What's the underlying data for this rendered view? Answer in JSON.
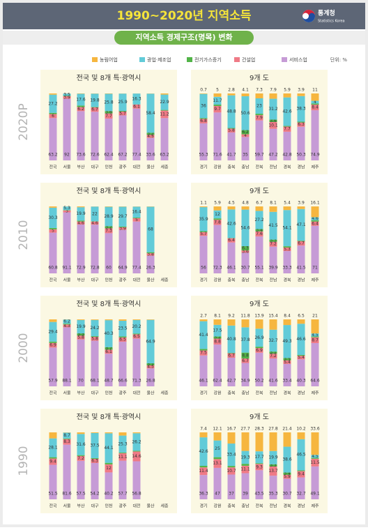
{
  "header": {
    "title": "1990~2020년 지역소득",
    "logo_text": "통계청",
    "logo_sub": "Statistics Korea"
  },
  "subtitle": "지역소득 경제구조(명목) 변화",
  "unit": "단위: %",
  "legend": [
    {
      "name": "농림어업",
      "color": "#f6b63f"
    },
    {
      "name": "광업·제조업",
      "color": "#62cbd8"
    },
    {
      "name": "전기가스증기",
      "color": "#52b448"
    },
    {
      "name": "건설업",
      "color": "#ef7a86"
    },
    {
      "name": "서비스업",
      "color": "#c69bd6"
    }
  ],
  "chart_data": [
    {
      "type": "bar",
      "stacked": true,
      "year": "2020P",
      "title": "전국 및 8개 특·광역시",
      "top_labels": false,
      "ylim": [
        0,
        100
      ],
      "categories": [
        "전국",
        "서울",
        "부산",
        "대구",
        "인천",
        "광주",
        "대전",
        "울산",
        "세종"
      ],
      "series": [
        {
          "values": [
            1.8,
            0.1,
            0.5,
            0.3,
            0.5,
            0.2,
            0.1,
            0.3,
            1.7
          ]
        },
        {
          "values": [
            27.2,
            3.5,
            17.6,
            19.8,
            25.8,
            25.9,
            16.3,
            58.4,
            22.9
          ]
        },
        {
          "values": [
            1.8,
            0.5,
            2.1,
            0.6,
            3.6,
            1.0,
            0.1,
            3.2,
            1.0
          ]
        },
        {
          "values": [
            6.0,
            3.9,
            6.2,
            6.7,
            7.7,
            5.7,
            6.1,
            4.5,
            11.2
          ]
        },
        {
          "values": [
            63.2,
            92.0,
            73.6,
            72.6,
            62.4,
            67.2,
            77.4,
            33.6,
            63.2
          ]
        }
      ]
    },
    {
      "type": "bar",
      "stacked": true,
      "title": "9개 도",
      "top_labels": true,
      "ylim": [
        0,
        100
      ],
      "categories": [
        "경기",
        "강원",
        "충북",
        "충남",
        "전북",
        "전남",
        "경북",
        "경남",
        "제주"
      ],
      "series": [
        {
          "values": [
            0.7,
            5.0,
            2.8,
            4.1,
            7.3,
            7.9,
            5.9,
            3.9,
            11.0
          ]
        },
        {
          "values": [
            36.0,
            11.7,
            48.8,
            50.6,
            23.0,
            31.2,
            42.6,
            38.3,
            4.0
          ]
        },
        {
          "values": [
            1.2,
            2.0,
            0.9,
            6.2,
            2.1,
            3.6,
            1.0,
            1.2,
            1.7
          ]
        },
        {
          "values": [
            6.8,
            9.7,
            5.8,
            4.0,
            7.9,
            10.1,
            7.7,
            6.3,
            8.4
          ]
        },
        {
          "values": [
            55.3,
            71.6,
            41.7,
            35.0,
            59.7,
            47.2,
            42.8,
            50.3,
            74.9
          ]
        }
      ]
    },
    {
      "type": "bar",
      "stacked": true,
      "year": "2010",
      "title": "전국 및 8개 특·광역시",
      "top_labels": false,
      "ylim": [
        0,
        100
      ],
      "categories": [
        "전국",
        "서울",
        "부산",
        "대구",
        "인천",
        "광주",
        "대전",
        "울산",
        "세종"
      ],
      "series": [
        {
          "values": [
            1.9,
            0.1,
            1.2,
            0.2,
            0.6,
            0.4,
            0.3,
            0.4,
            null
          ]
        },
        {
          "values": [
            30.3,
            5.3,
            19.9,
            22.0,
            28.9,
            29.7,
            16.4,
            68.0,
            null
          ]
        },
        {
          "values": [
            2.0,
            0.5,
            1.4,
            0.4,
            3.2,
            1.1,
            0.9,
            1.5,
            null
          ]
        },
        {
          "values": [
            5.0,
            3.0,
            4.6,
            4.6,
            7.3,
            3.9,
            5.0,
            3.8,
            null
          ]
        },
        {
          "values": [
            60.8,
            91.1,
            72.9,
            72.8,
            60.0,
            64.9,
            77.4,
            26.3,
            null
          ]
        }
      ]
    },
    {
      "type": "bar",
      "stacked": true,
      "title": "9개 도",
      "top_labels": true,
      "ylim": [
        0,
        100
      ],
      "categories": [
        "경기",
        "강원",
        "충북",
        "충남",
        "전북",
        "전남",
        "경북",
        "경남",
        "제주"
      ],
      "series": [
        {
          "values": [
            1.1,
            5.9,
            4.5,
            4.8,
            6.7,
            8.1,
            5.4,
            3.9,
            16.1
          ]
        },
        {
          "values": [
            35.9,
            12.0,
            42.6,
            54.6,
            27.2,
            41.5,
            54.1,
            47.1,
            4.6
          ]
        },
        {
          "values": [
            1.3,
            2.0,
            0.4,
            6.3,
            3.4,
            3.3,
            1.9,
            0.8,
            1.9
          ]
        },
        {
          "values": [
            5.7,
            7.8,
            6.4,
            3.6,
            7.6,
            7.2,
            5.3,
            6.7,
            6.4
          ]
        },
        {
          "values": [
            56.0,
            72.3,
            46.1,
            30.7,
            55.1,
            39.9,
            33.3,
            41.5,
            71.0
          ]
        }
      ]
    },
    {
      "type": "bar",
      "stacked": true,
      "year": "2000",
      "title": "전국 및 8개 특·광역시",
      "top_labels": false,
      "ylim": [
        0,
        100
      ],
      "categories": [
        "전국",
        "서울",
        "부산",
        "대구",
        "인천",
        "광주",
        "대전",
        "울산",
        "세종"
      ],
      "series": [
        {
          "values": [
            3.8,
            0.2,
            1.0,
            0.9,
            1.2,
            2.0,
            1.0,
            0.7,
            null
          ]
        },
        {
          "values": [
            29.4,
            6.2,
            19.9,
            24.2,
            40.3,
            23.5,
            20.2,
            64.9,
            null
          ]
        },
        {
          "values": [
            2.0,
            1.2,
            3.3,
            1.0,
            3.7,
            1.4,
            1.0,
            3.1,
            null
          ]
        },
        {
          "values": [
            6.9,
            4.3,
            5.8,
            5.8,
            6.1,
            6.5,
            6.5,
            4.5,
            null
          ]
        },
        {
          "values": [
            57.9,
            88.1,
            70.0,
            68.1,
            48.7,
            66.6,
            71.3,
            26.8,
            null
          ]
        }
      ]
    },
    {
      "type": "bar",
      "stacked": true,
      "title": "9개 도",
      "top_labels": true,
      "ylim": [
        0,
        100
      ],
      "categories": [
        "경기",
        "강원",
        "충북",
        "충남",
        "전북",
        "전남",
        "경북",
        "경남",
        "제주"
      ],
      "series": [
        {
          "values": [
            2.7,
            8.1,
            9.2,
            11.8,
            13.9,
            15.4,
            8.4,
            6.5,
            21.0
          ]
        },
        {
          "values": [
            41.4,
            17.5,
            40.8,
            37.8,
            26.9,
            32.7,
            49.3,
            46.6,
            4.5
          ]
        },
        {
          "values": [
            2.3,
            3.2,
            0.6,
            8.8,
            2.1,
            3.1,
            3.5,
            1.2,
            1.2
          ]
        },
        {
          "values": [
            7.5,
            8.8,
            6.7,
            6.7,
            6.9,
            7.2,
            5.4,
            5.4,
            8.7
          ]
        },
        {
          "values": [
            46.1,
            62.4,
            42.7,
            34.9,
            50.2,
            41.6,
            33.4,
            40.3,
            64.6
          ]
        }
      ]
    },
    {
      "type": "bar",
      "stacked": true,
      "year": "1990",
      "title": "전국 및 8개 특·광역시",
      "top_labels": false,
      "ylim": [
        0,
        100
      ],
      "categories": [
        "전국",
        "서울",
        "부산",
        "대구",
        "인천",
        "광주",
        "대전",
        "울산",
        "세종"
      ],
      "series": [
        {
          "values": [
            9.0,
            0.4,
            2.4,
            1.0,
            1.4,
            4.8,
            1.3,
            null,
            null
          ]
        },
        {
          "values": [
            28.1,
            8.7,
            31.6,
            37.5,
            44.1,
            25.3,
            26.2,
            null,
            null
          ]
        },
        {
          "values": [
            2.0,
            1.0,
            1.3,
            1.0,
            2.3,
            1.1,
            1.1,
            null,
            null
          ]
        },
        {
          "values": [
            9.4,
            8.3,
            7.2,
            6.3,
            12.0,
            11.1,
            14.6,
            null,
            null
          ]
        },
        {
          "values": [
            51.5,
            81.6,
            57.5,
            54.2,
            40.2,
            57.7,
            56.8,
            null,
            null
          ]
        }
      ]
    },
    {
      "type": "bar",
      "stacked": true,
      "title": "9개 도",
      "top_labels": true,
      "ylim": [
        0,
        100
      ],
      "categories": [
        "경기",
        "강원",
        "충북",
        "충남",
        "전북",
        "전남",
        "경북",
        "경남",
        "제주"
      ],
      "series": [
        {
          "values": [
            7.4,
            12.1,
            16.7,
            27.7,
            28.3,
            27.8,
            21.4,
            10.2,
            33.6
          ]
        },
        {
          "values": [
            42.6,
            25.0,
            33.4,
            19.3,
            17.7,
            19.9,
            38.6,
            46.5,
            4.5
          ]
        },
        {
          "values": [
            2.3,
            2.8,
            2.2,
            2.9,
            1.2,
            3.3,
            3.4,
            1.2,
            1.3
          ]
        },
        {
          "values": [
            11.4,
            13.1,
            10.7,
            11.1,
            9.3,
            13.7,
            5.9,
            9.4,
            11.5
          ]
        },
        {
          "values": [
            36.3,
            47.0,
            37.0,
            39.0,
            43.5,
            35.3,
            30.7,
            32.7,
            49.1
          ]
        }
      ]
    }
  ]
}
